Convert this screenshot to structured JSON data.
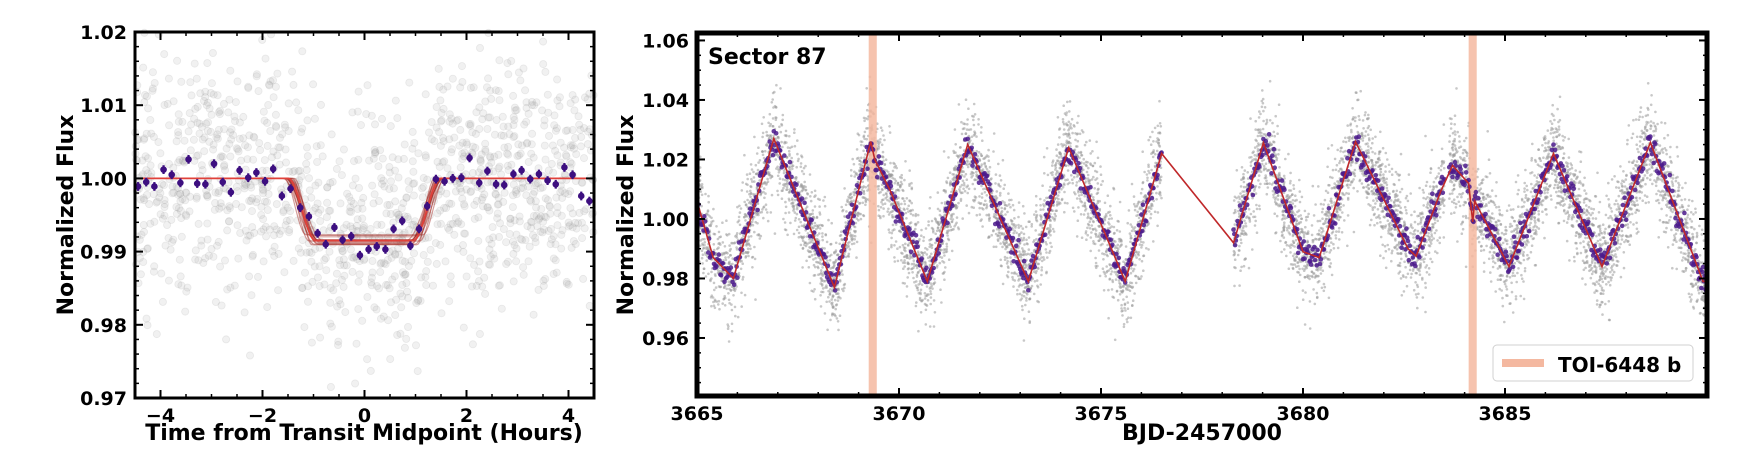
{
  "chart_data": [
    {
      "type": "scatter",
      "title": "",
      "xlabel": "Time from Transit Midpoint (Hours)",
      "ylabel": "Normalized Flux",
      "xlim": [
        -4.5,
        4.5
      ],
      "ylim": [
        0.97,
        1.02
      ],
      "xticks": [
        -4,
        -2,
        0,
        2,
        4
      ],
      "xtick_labels": [
        "−4",
        "−2",
        "0",
        "2",
        "4"
      ],
      "yticks": [
        0.97,
        0.98,
        0.99,
        1.0,
        1.01,
        1.02
      ],
      "ytick_labels": [
        "0.97",
        "0.98",
        "0.99",
        "1.00",
        "1.01",
        "1.02"
      ],
      "grid": false,
      "series": [
        {
          "name": "unbinned flux",
          "kind": "scatter",
          "color": "#9a9a9a",
          "scatter_sigma": 0.008
        },
        {
          "name": "binned flux",
          "kind": "errorbar",
          "color": "#3d0f80",
          "yerr": 0.0006,
          "x": [
            -4.44,
            -4.28,
            -4.12,
            -3.94,
            -3.78,
            -3.61,
            -3.45,
            -3.28,
            -3.12,
            -2.95,
            -2.78,
            -2.62,
            -2.45,
            -2.28,
            -2.12,
            -1.95,
            -1.79,
            -1.62,
            -1.45,
            -1.26,
            -1.09,
            -0.92,
            -0.76,
            -0.59,
            -0.43,
            -0.26,
            -0.09,
            0.08,
            0.24,
            0.41,
            0.57,
            0.74,
            0.9,
            1.07,
            1.23,
            1.4,
            1.57,
            1.73,
            1.9,
            2.06,
            2.25,
            2.41,
            2.58,
            2.74,
            2.92,
            3.08,
            3.25,
            3.42,
            3.59,
            3.75,
            3.92,
            4.08,
            4.25,
            4.41
          ],
          "y": [
            0.9989,
            0.9995,
            0.9989,
            1.0012,
            1.0005,
            0.9994,
            1.0026,
            0.9993,
            0.9992,
            1.002,
            0.9995,
            0.9981,
            1.0011,
            1.0001,
            1.0008,
            0.9996,
            1.0013,
            0.9976,
            0.9986,
            0.996,
            0.9948,
            0.9925,
            0.991,
            0.9933,
            0.9916,
            0.9921,
            0.9895,
            0.9903,
            0.9907,
            0.9903,
            0.9931,
            0.9942,
            0.9908,
            0.9931,
            0.9962,
            0.9999,
            0.9996,
            1.0,
            1.0001,
            1.0028,
            0.9994,
            1.001,
            0.9992,
            0.9991,
            1.0006,
            1.0011,
            0.9999,
            1.0006,
            0.9997,
            0.9992,
            1.0015,
            1.0005,
            0.9976,
            0.9969
          ]
        },
        {
          "name": "transit model",
          "kind": "line",
          "color": "#e0413a",
          "baseline": 1.0,
          "depth": 0.0085,
          "t_ingress_start": -1.5,
          "t_ingress_end": -0.95,
          "t_egress_start": 0.95,
          "t_egress_end": 1.5,
          "samples": 14
        }
      ]
    },
    {
      "type": "scatter",
      "title": "",
      "annotation": "Sector 87",
      "xlabel": "BJD-2457000",
      "ylabel": "Normalized Flux",
      "xlim": [
        3665,
        3690
      ],
      "ylim": [
        0.9405,
        1.0625
      ],
      "xticks": [
        3665,
        3670,
        3675,
        3680,
        3685
      ],
      "xtick_labels": [
        "3665",
        "3670",
        "3675",
        "3680",
        "3685"
      ],
      "yticks": [
        0.96,
        0.98,
        1.0,
        1.02,
        1.04,
        1.06
      ],
      "ytick_labels": [
        "0.96",
        "0.98",
        "1.00",
        "1.02",
        "1.04",
        "1.06"
      ],
      "grid": false,
      "legend": {
        "placement": "lower-right",
        "entries": [
          {
            "label": "TOI-6448 b",
            "color": "#f4b8a0"
          }
        ]
      },
      "transits": [
        3669.35,
        3684.2
      ],
      "transit_width_days": 0.2,
      "data_segments": [
        [
          3665.0,
          3676.5
        ],
        [
          3678.28,
          3683.5
        ],
        [
          3683.62,
          3690.0
        ]
      ],
      "series": [
        {
          "name": "unbinned flux",
          "kind": "scatter",
          "color": "#9a9a9a",
          "scatter_sigma": 0.0085
        },
        {
          "name": "binned flux",
          "kind": "scatter",
          "color": "#4b1a8c",
          "scatter_sigma": 0.0022
        },
        {
          "name": "trend",
          "kind": "line",
          "color": "#c0282a",
          "x": [
            3665.0,
            3665.4,
            3665.9,
            3666.9,
            3668.4,
            3669.3,
            3669.4,
            3669.8,
            3670.7,
            3671.7,
            3673.2,
            3674.2,
            3675.6,
            3676.5,
            3678.28,
            3679.02,
            3680.0,
            3680.4,
            3681.3,
            3682.6,
            3682.8,
            3683.4,
            3683.7,
            3684.1,
            3684.2,
            3684.25,
            3685.1,
            3686.2,
            3687.4,
            3688.6,
            3689.9,
            3690.0
          ],
          "y": [
            1.006,
            0.987,
            0.98,
            1.027,
            0.977,
            1.026,
            1.02,
            1.009,
            0.979,
            1.025,
            0.979,
            1.024,
            0.979,
            1.022,
            0.992,
            1.0256,
            0.989,
            0.987,
            1.026,
            0.99,
            0.9875,
            1.009,
            1.018,
            1.012,
            0.999,
            1.006,
            0.984,
            1.022,
            0.984,
            1.0257,
            0.979,
            0.979
          ]
        }
      ]
    }
  ]
}
